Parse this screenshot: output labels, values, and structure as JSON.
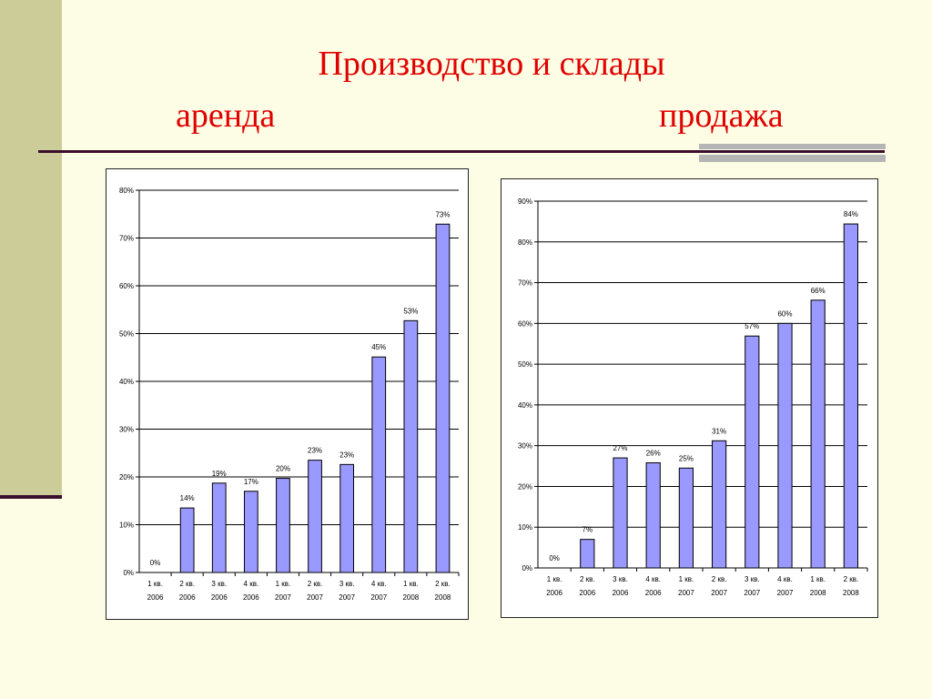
{
  "slide": {
    "title": "Производство и склады",
    "subtitle_left": "аренда",
    "subtitle_right": "продажа"
  },
  "chart_data": [
    {
      "type": "bar",
      "title": "аренда",
      "categories": [
        [
          "1 кв.",
          "2006"
        ],
        [
          "2 кв.",
          "2006"
        ],
        [
          "3 кв.",
          "2006"
        ],
        [
          "4 кв.",
          "2006"
        ],
        [
          "1 кв.",
          "2007"
        ],
        [
          "2 кв.",
          "2007"
        ],
        [
          "3 кв.",
          "2007"
        ],
        [
          "4 кв.",
          "2007"
        ],
        [
          "1 кв.",
          "2008"
        ],
        [
          "2 кв.",
          "2008"
        ]
      ],
      "values": [
        0,
        13.5,
        18.7,
        17.0,
        19.7,
        23.5,
        22.6,
        45.1,
        52.7,
        72.9
      ],
      "data_labels": [
        "0%",
        "14%",
        "19%",
        "17%",
        "20%",
        "23%",
        "23%",
        "45%",
        "53%",
        "73%"
      ],
      "ylim": [
        0,
        80
      ],
      "yticks": [
        "0%",
        "10%",
        "20%",
        "30%",
        "40%",
        "50%",
        "60%",
        "70%",
        "80%"
      ],
      "grid": true,
      "bar_color": "#9999ff"
    },
    {
      "type": "bar",
      "title": "продажа",
      "categories": [
        [
          "1 кв.",
          "2006"
        ],
        [
          "2 кв.",
          "2006"
        ],
        [
          "3 кв.",
          "2006"
        ],
        [
          "4 кв.",
          "2006"
        ],
        [
          "1 кв.",
          "2007"
        ],
        [
          "2 кв.",
          "2007"
        ],
        [
          "3 кв.",
          "2007"
        ],
        [
          "4 кв.",
          "2007"
        ],
        [
          "1 кв.",
          "2008"
        ],
        [
          "2 кв.",
          "2008"
        ]
      ],
      "values": [
        0,
        7,
        27,
        25.8,
        24.5,
        31.2,
        56.9,
        60,
        65.7,
        84.4
      ],
      "data_labels": [
        "0%",
        "7%",
        "27%",
        "26%",
        "25%",
        "31%",
        "57%",
        "60%",
        "66%",
        "84%"
      ],
      "ylim": [
        0,
        90
      ],
      "yticks": [
        "0%",
        "10%",
        "20%",
        "30%",
        "40%",
        "50%",
        "60%",
        "70%",
        "80%",
        "90%"
      ],
      "grid": true,
      "bar_color": "#9999ff"
    }
  ]
}
